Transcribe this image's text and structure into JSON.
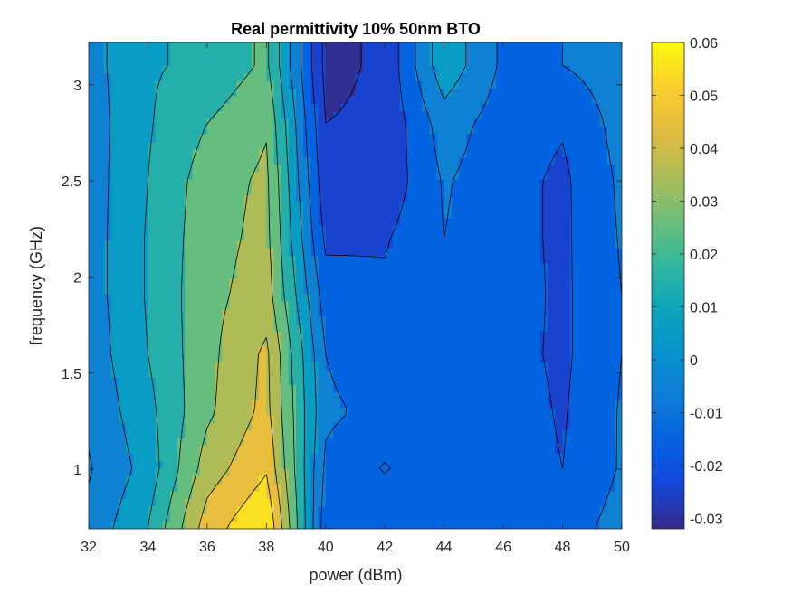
{
  "chart_data": {
    "type": "heatmap",
    "subtype": "filled-contour",
    "title": "Real permittivity 10% 50nm BTO",
    "xlabel": "power (dBm)",
    "ylabel": "frequency (GHz)",
    "xlim": [
      32,
      50
    ],
    "ylim": [
      0.69,
      3.22
    ],
    "x_ticks": [
      "32",
      "34",
      "36",
      "38",
      "40",
      "42",
      "44",
      "46",
      "48",
      "50"
    ],
    "y_ticks": [
      "1",
      "1.5",
      "2",
      "2.5",
      "3"
    ],
    "colorbar": {
      "colormap": "parula",
      "limits": [
        -0.032,
        0.06
      ],
      "ticks": [
        "-0.03",
        "-0.02",
        "-0.01",
        "0",
        "0.01",
        "0.02",
        "0.03",
        "0.04",
        "0.05",
        "0.06"
      ],
      "location": "right"
    },
    "x": [
      32,
      34,
      36,
      38,
      40,
      42,
      44,
      46,
      48,
      50
    ],
    "y": [
      0.7,
      1.0,
      1.3,
      1.6,
      1.9,
      2.2,
      2.5,
      2.8,
      3.1
    ],
    "z": [
      [
        -0.007,
        0.01,
        0.045,
        0.06,
        -0.016,
        -0.01,
        -0.011,
        -0.013,
        -0.015,
        -0.006
      ],
      [
        -0.011,
        0.004,
        0.035,
        0.049,
        -0.012,
        -0.021,
        -0.012,
        -0.015,
        -0.02,
        -0.009
      ],
      [
        -0.008,
        0.007,
        0.028,
        0.043,
        -0.008,
        -0.013,
        -0.011,
        -0.015,
        -0.021,
        -0.009
      ],
      [
        -0.006,
        0.01,
        0.027,
        0.042,
        -0.01,
        -0.019,
        -0.013,
        -0.016,
        -0.022,
        -0.01
      ],
      [
        -0.005,
        0.011,
        0.027,
        0.035,
        -0.015,
        -0.018,
        -0.012,
        -0.015,
        -0.022,
        -0.01
      ],
      [
        -0.005,
        0.011,
        0.026,
        0.033,
        -0.022,
        -0.021,
        -0.01,
        -0.016,
        -0.022,
        -0.009
      ],
      [
        -0.005,
        0.01,
        0.025,
        0.032,
        -0.027,
        -0.027,
        -0.009,
        -0.016,
        -0.022,
        -0.008
      ],
      [
        -0.005,
        0.009,
        0.02,
        0.029,
        -0.03,
        -0.028,
        -0.005,
        -0.015,
        -0.019,
        -0.006
      ],
      [
        -0.004,
        0.009,
        0.012,
        0.022,
        -0.033,
        -0.028,
        0.007,
        -0.012,
        -0.01,
        -0.005
      ]
    ],
    "contour_levels": [
      -0.03,
      -0.02,
      -0.01,
      0,
      0.01,
      0.02,
      0.03,
      0.04,
      0.05,
      0.06
    ],
    "grid": false
  }
}
